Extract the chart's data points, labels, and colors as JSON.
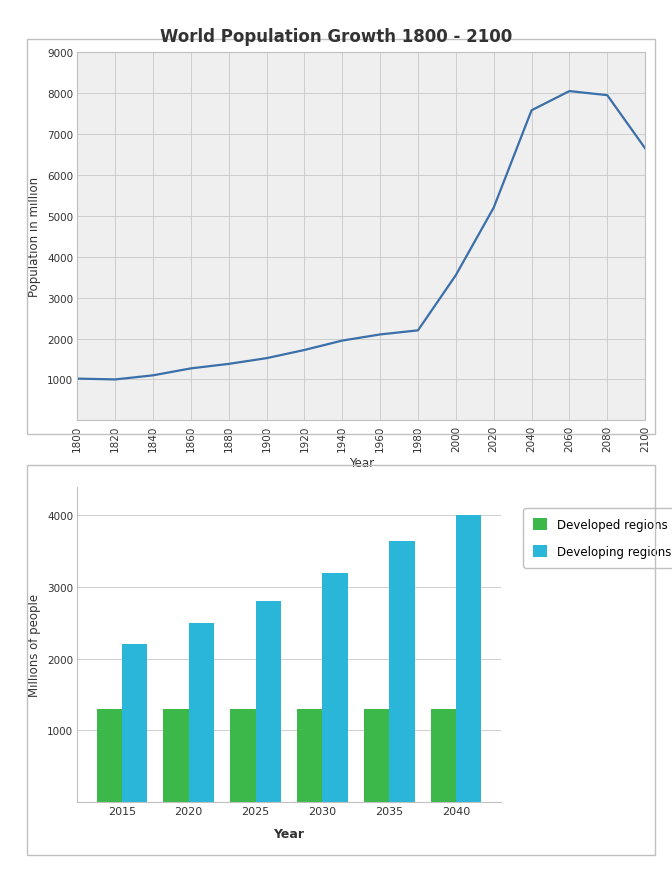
{
  "title": "World Population Growth 1800 - 2100",
  "line_years": [
    1800,
    1820,
    1840,
    1860,
    1880,
    1900,
    1920,
    1940,
    1960,
    1980,
    2000,
    2020,
    2040,
    2060,
    2080,
    2100
  ],
  "line_pop": [
    1020,
    1000,
    1100,
    1270,
    1380,
    1520,
    1720,
    1950,
    2100,
    2200,
    3550,
    5200,
    7580,
    8050,
    7950,
    6650
  ],
  "line_color": "#3a6fa8",
  "line_ylabel": "Population in million",
  "line_xlabel": "Year",
  "line_ylim": [
    0,
    9000
  ],
  "line_yticks": [
    0,
    1000,
    2000,
    3000,
    4000,
    5000,
    6000,
    7000,
    8000,
    9000
  ],
  "line_xticks": [
    1800,
    1820,
    1840,
    1860,
    1880,
    1900,
    1920,
    1940,
    1960,
    1980,
    2000,
    2020,
    2040,
    2060,
    2080,
    2100
  ],
  "bar_years": [
    "2015",
    "2020",
    "2025",
    "2030",
    "2035",
    "2040"
  ],
  "bar_developed": [
    1300,
    1300,
    1300,
    1300,
    1300,
    1300
  ],
  "bar_developing": [
    2200,
    2500,
    2800,
    3200,
    3650,
    4000
  ],
  "bar_color_developed": "#3cb84a",
  "bar_color_developing": "#29b6d8",
  "bar_ylabel": "Millions of people",
  "bar_xlabel": "Year",
  "bar_ylim": [
    0,
    4400
  ],
  "bar_yticks": [
    0,
    1000,
    2000,
    3000,
    4000
  ],
  "legend_developed": "Developed regions",
  "legend_developing": "Developing regions",
  "fig_bg": "#ffffff",
  "plot1_bg": "#efefef",
  "plot2_bg": "#ffffff",
  "grid_color": "#c8c8c8",
  "box_edge_color": "#c0c0c0"
}
